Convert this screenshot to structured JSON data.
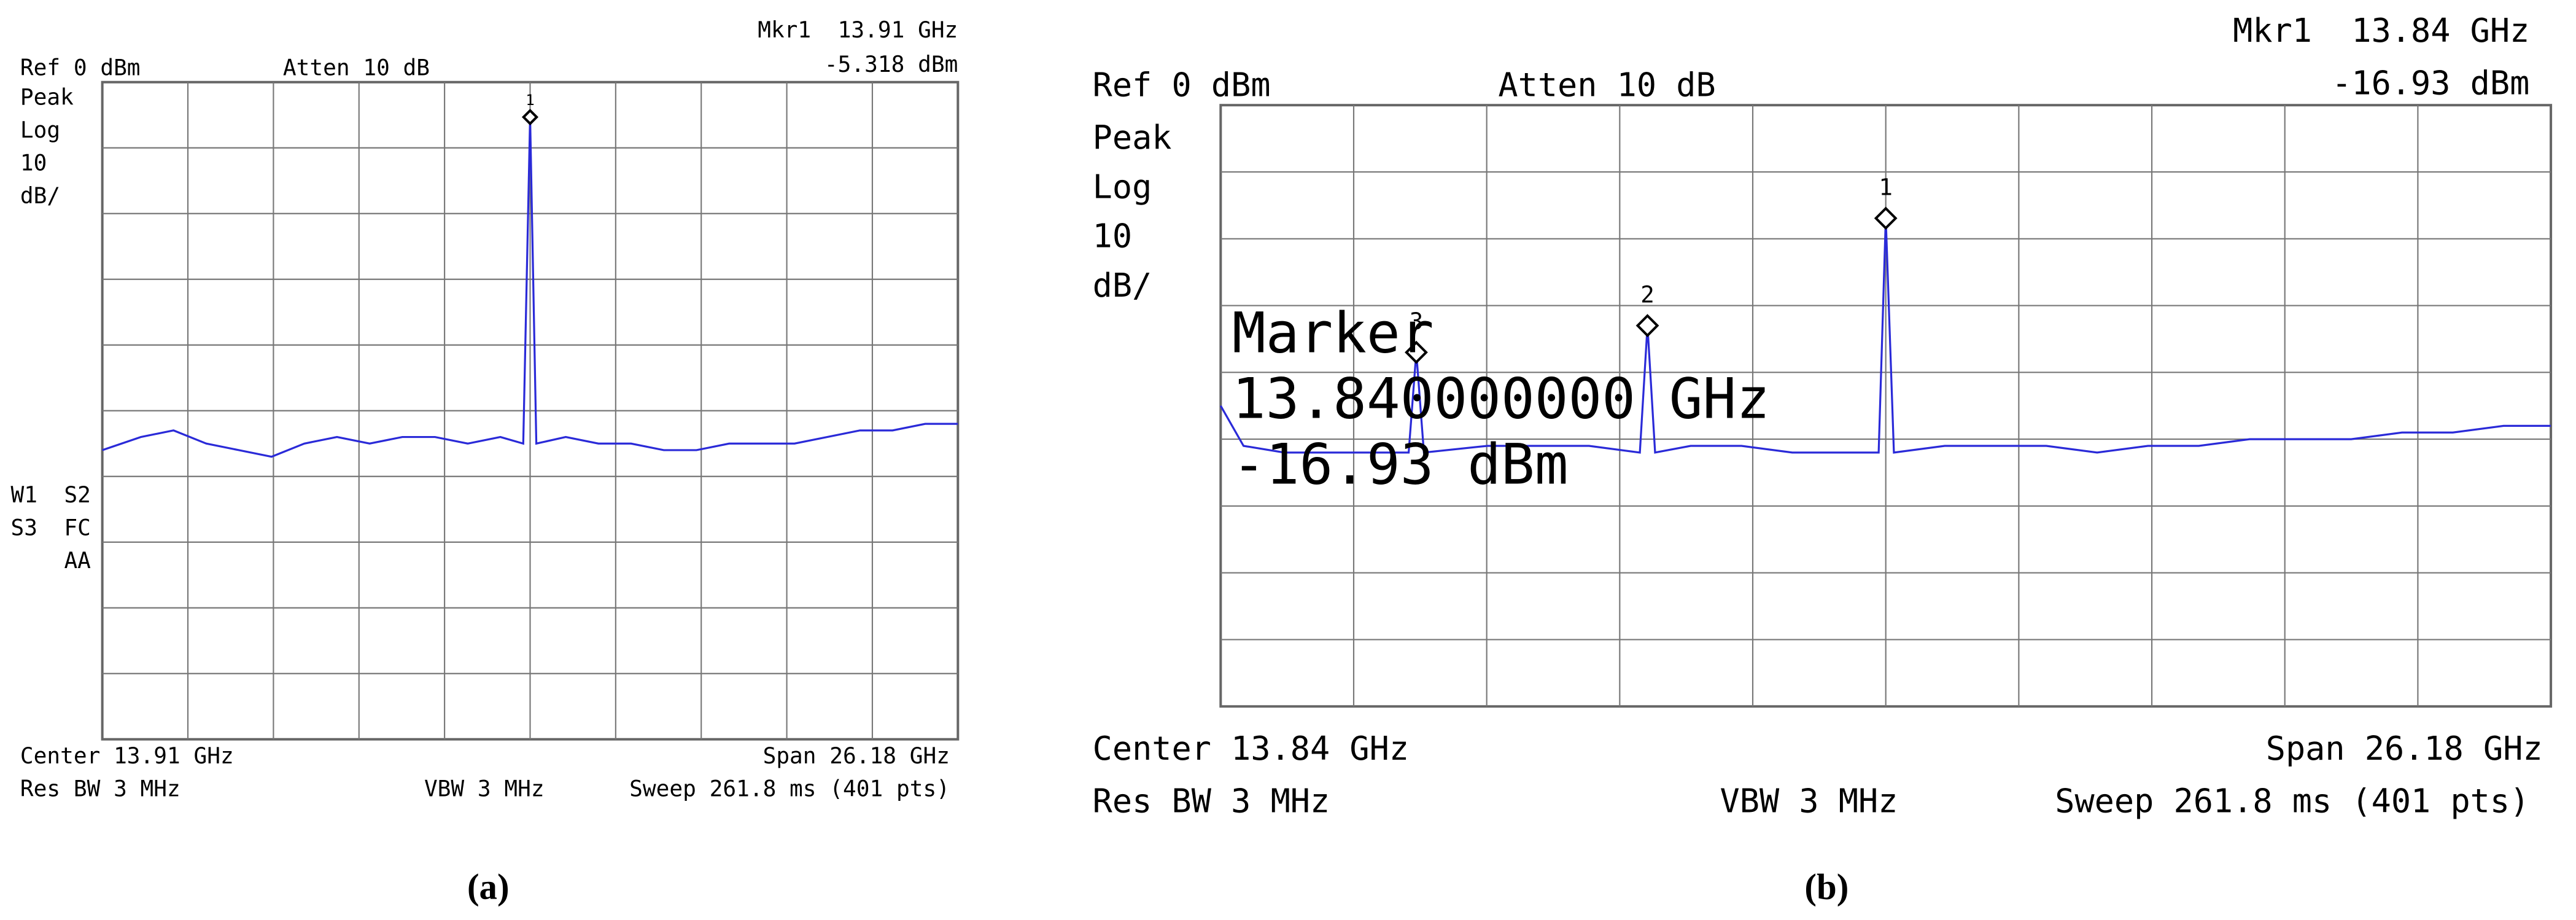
{
  "chart_data": [
    {
      "type": "line",
      "color": "#2a2ad8",
      "ref": "Ref 0 dBm",
      "atten": "Atten 10 dB",
      "marker_label": "Mkr1  13.91 GHz",
      "marker_value": "-5.318 dBm",
      "side_labels": [
        "Peak",
        "Log",
        "10",
        "dB/"
      ],
      "status_labels": [
        "W1  S2",
        "S3  FC",
        "AA"
      ],
      "center": "Center 13.91 GHz",
      "span": "Span 26.18 GHz",
      "rbw": "Res BW 3 MHz",
      "vbw": "VBW 3 MHz",
      "sweep": "Sweep 261.8 ms (401 pts)",
      "caption": "(a)",
      "xlim": [
        0.82,
        27.0
      ],
      "ylim": [
        -100,
        0
      ],
      "grid": true,
      "x": [
        0.82,
        2,
        3,
        4,
        5,
        6,
        7,
        8,
        9,
        10,
        11,
        12,
        13,
        13.7,
        13.91,
        14.1,
        15,
        16,
        17,
        18,
        19,
        20,
        21,
        22,
        23,
        24,
        25,
        26,
        27
      ],
      "values": [
        -56,
        -54,
        -53,
        -55,
        -56,
        -57,
        -55,
        -54,
        -55,
        -54,
        -54,
        -55,
        -54,
        -55,
        -5.318,
        -55,
        -54,
        -55,
        -55,
        -56,
        -56,
        -55,
        -55,
        -55,
        -54,
        -53,
        -53,
        -52,
        -52
      ],
      "markers": [
        {
          "label": "1",
          "x": 13.91,
          "y": -5.318
        }
      ]
    },
    {
      "type": "line",
      "color": "#2a2ad8",
      "ref": "Ref 0 dBm",
      "atten": "Atten 10 dB",
      "marker_label": "Mkr1  13.84 GHz",
      "marker_value": "-16.93 dBm",
      "side_labels": [
        "Peak",
        "Log",
        "10",
        "dB/"
      ],
      "center": "Center 13.84 GHz",
      "span": "Span 26.18 GHz",
      "rbw": "Res BW 3 MHz",
      "vbw": "VBW 3 MHz",
      "sweep": "Sweep 261.8 ms (401 pts)",
      "caption": "(b)",
      "marker_box": [
        "Marker",
        "13.840000000 GHz",
        "-16.93 dBm"
      ],
      "xlim": [
        0.75,
        26.93
      ],
      "ylim": [
        -90,
        0
      ],
      "grid": true,
      "x": [
        0.75,
        1.2,
        2,
        3,
        4,
        4.45,
        4.6,
        4.75,
        6,
        7,
        8,
        9.0,
        9.15,
        9.3,
        10,
        11,
        12,
        13,
        13.7,
        13.84,
        14,
        15,
        16,
        17,
        18,
        19,
        20,
        21,
        22,
        23,
        24,
        25,
        26,
        26.93
      ],
      "values": [
        -45,
        -51,
        -52,
        -52,
        -52,
        -52,
        -37,
        -52,
        -51,
        -51,
        -51,
        -52,
        -33,
        -52,
        -51,
        -51,
        -52,
        -52,
        -52,
        -16.93,
        -52,
        -51,
        -51,
        -51,
        -52,
        -51,
        -51,
        -50,
        -50,
        -50,
        -49,
        -49,
        -48,
        -48
      ],
      "markers": [
        {
          "label": "1",
          "x": 13.84,
          "y": -16.93
        },
        {
          "label": "2",
          "x": 9.15,
          "y": -33
        },
        {
          "label": "3",
          "x": 4.6,
          "y": -37
        }
      ]
    }
  ]
}
